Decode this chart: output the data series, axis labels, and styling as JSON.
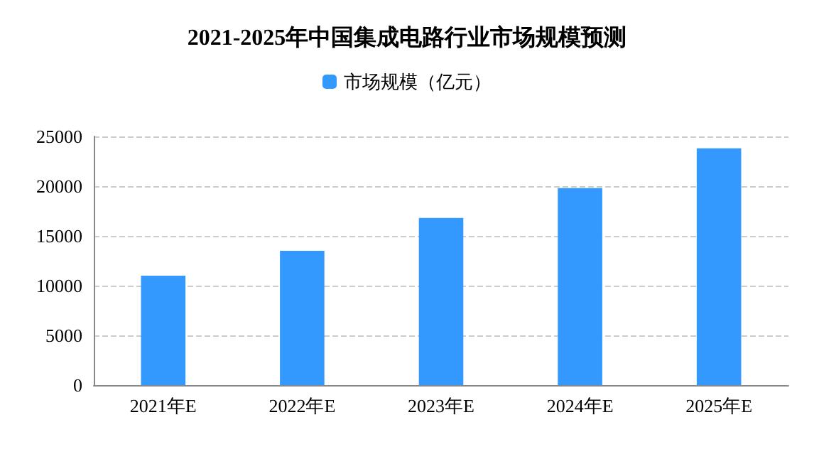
{
  "chart_data": {
    "type": "bar",
    "title": "2021-2025年中国集成电路行业市场规模预测",
    "categories": [
      "2021年E",
      "2022年E",
      "2023年E",
      "2024年E",
      "2025年E"
    ],
    "series": [
      {
        "name": "市场规模（亿元）",
        "color": "#3399ff",
        "values": [
          11000,
          13500,
          16800,
          19800,
          23800
        ]
      }
    ],
    "ylim": [
      0,
      25000
    ],
    "yticks": [
      0,
      5000,
      10000,
      15000,
      20000,
      25000
    ],
    "grid": "y",
    "legend": "top"
  }
}
